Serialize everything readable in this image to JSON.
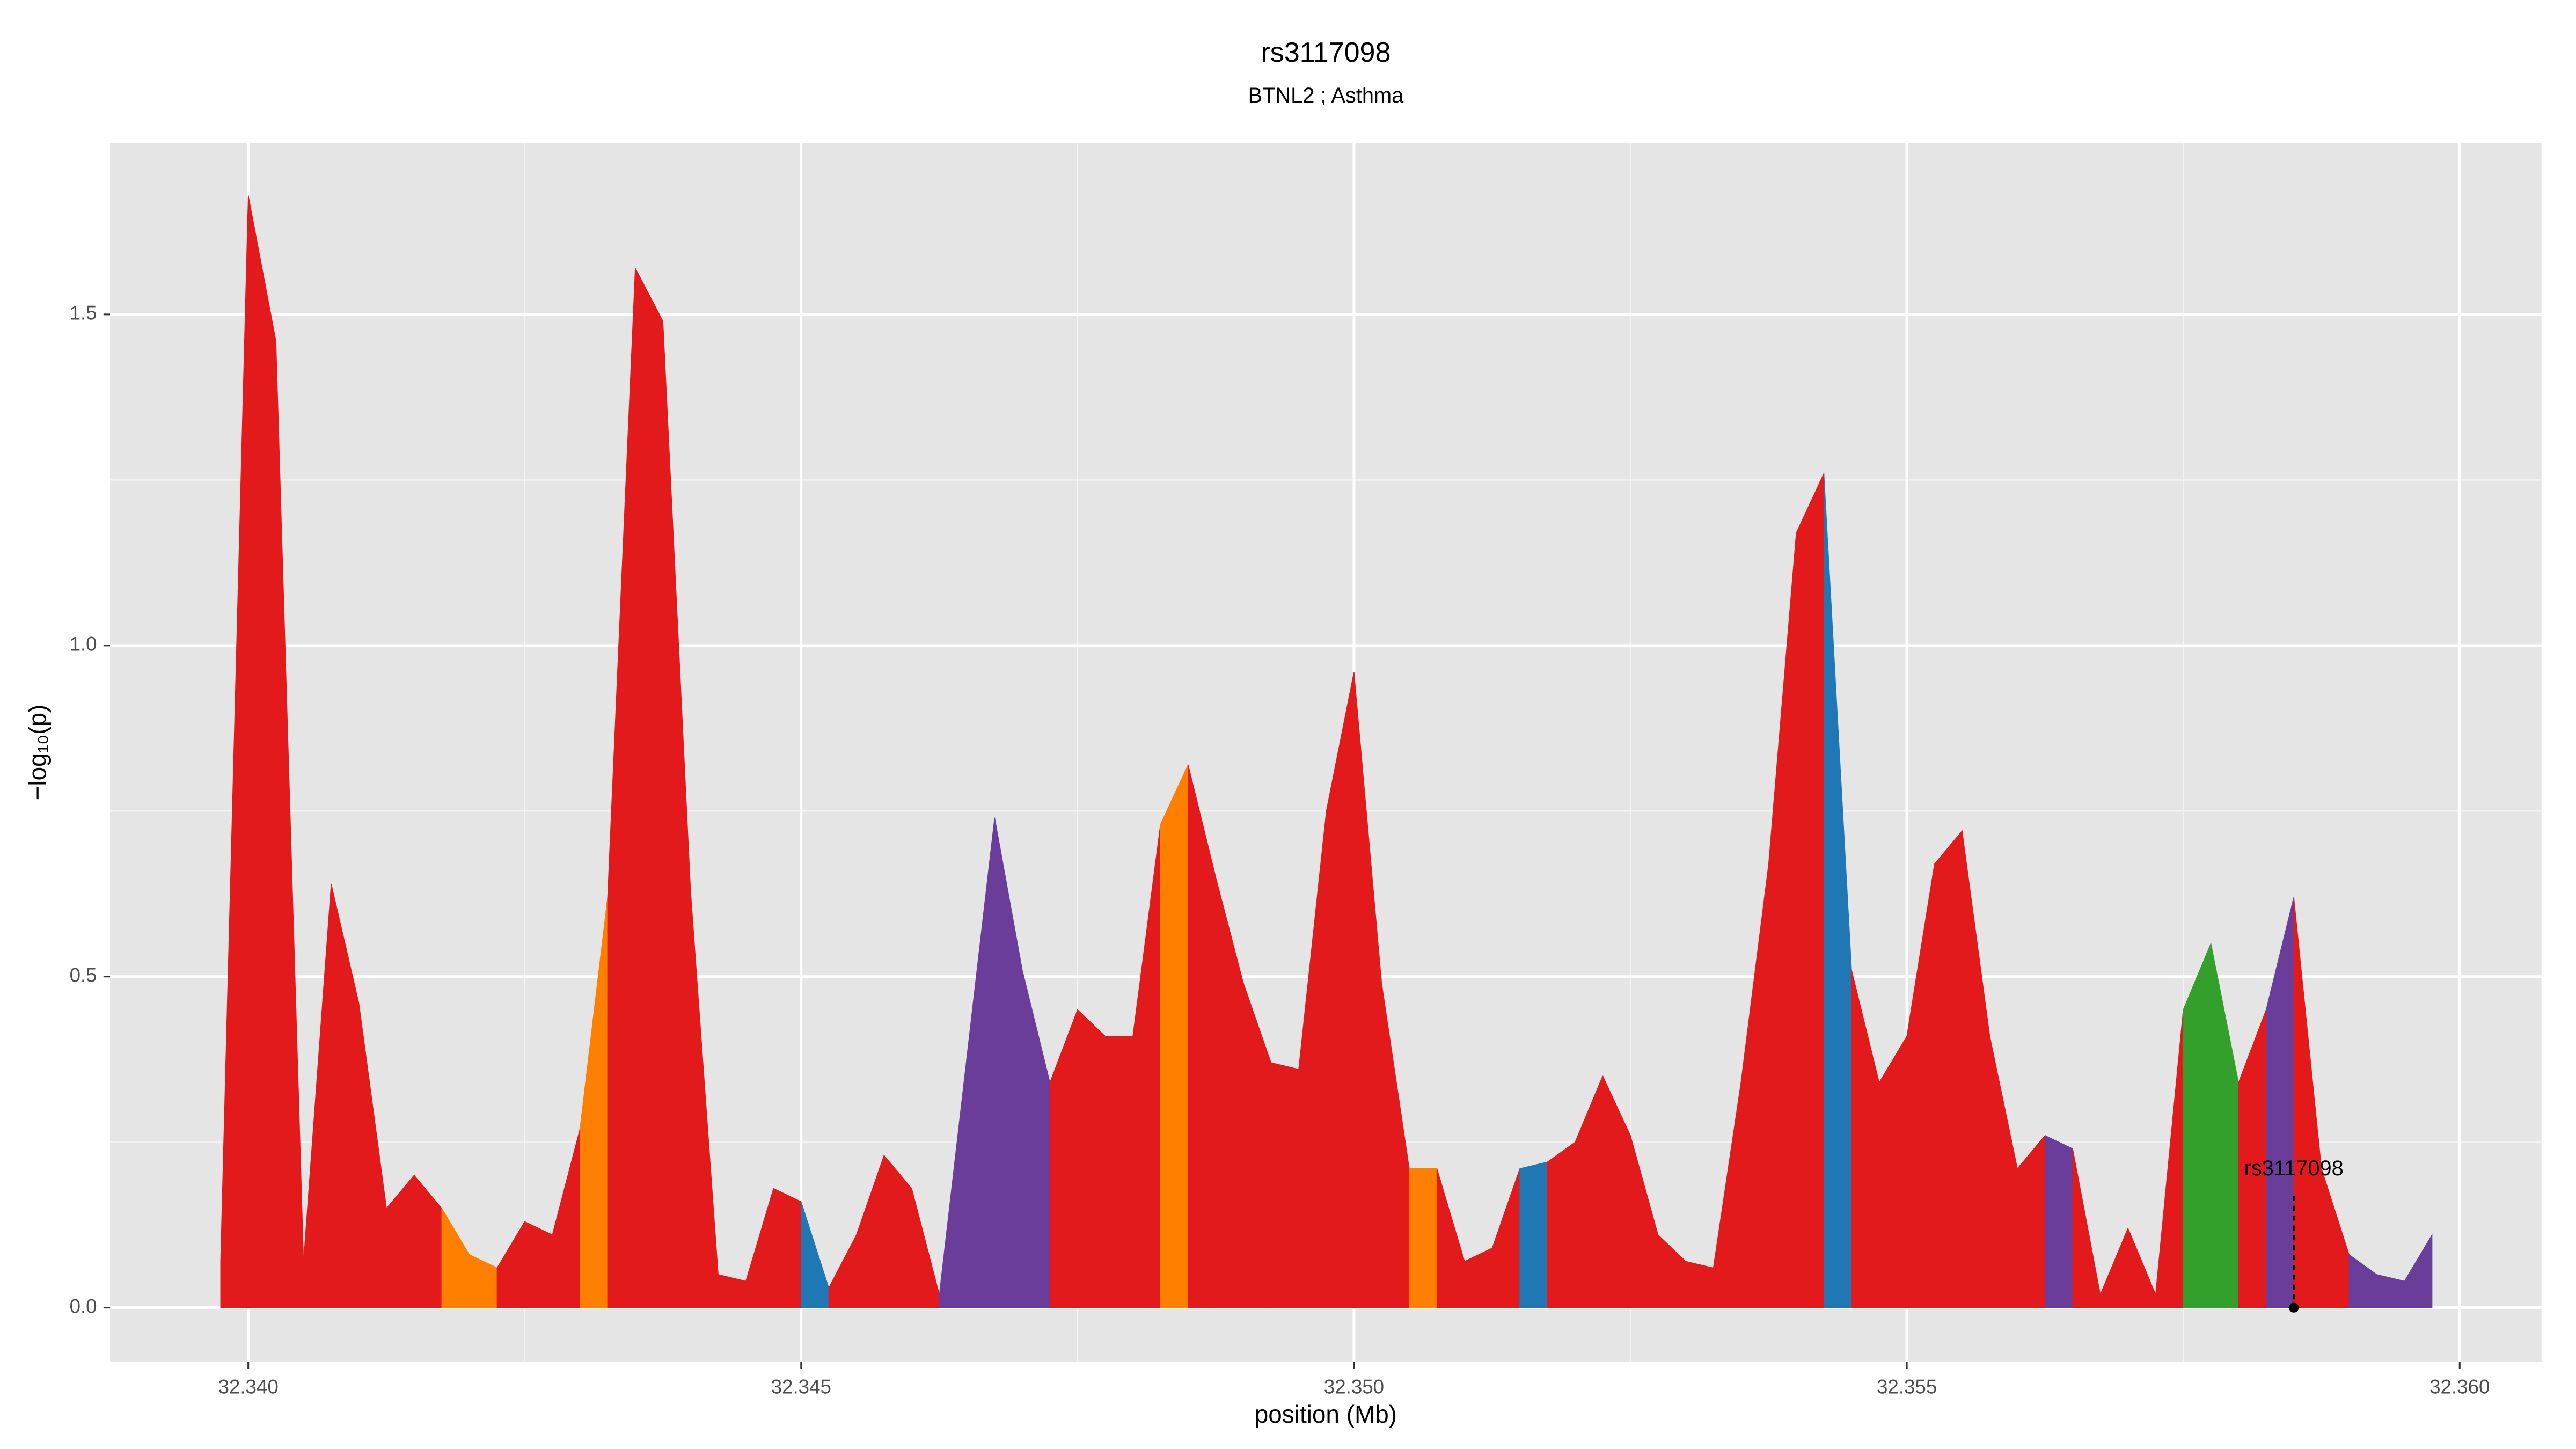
{
  "chart_data": {
    "type": "area",
    "title": "rs3117098",
    "subtitle": "BTNL2 ; Asthma",
    "xlabel": "position (Mb)",
    "ylabel": "−log₁₀(p)",
    "x": [
      32.33975,
      32.34,
      32.34025,
      32.3405,
      32.34075,
      32.341,
      32.34125,
      32.3415,
      32.34175,
      32.342,
      32.34225,
      32.3425,
      32.34275,
      32.343,
      32.34325,
      32.3435,
      32.34375,
      32.344,
      32.34425,
      32.3445,
      32.34475,
      32.345,
      32.34525,
      32.3455,
      32.34575,
      32.346,
      32.34625,
      32.3465,
      32.34675,
      32.347,
      32.34725,
      32.3475,
      32.34775,
      32.348,
      32.34825,
      32.3485,
      32.34875,
      32.349,
      32.34925,
      32.3495,
      32.34975,
      32.35,
      32.35025,
      32.3505,
      32.35075,
      32.351,
      32.35125,
      32.3515,
      32.35175,
      32.352,
      32.35225,
      32.3525,
      32.35275,
      32.353,
      32.35325,
      32.3535,
      32.35375,
      32.354,
      32.35425,
      32.3545,
      32.35475,
      32.355,
      32.35525,
      32.3555,
      32.35575,
      32.356,
      32.35625,
      32.3565,
      32.35675,
      32.357,
      32.35725,
      32.3575,
      32.35775,
      32.358,
      32.35825,
      32.3585,
      32.35875,
      32.359,
      32.35925,
      32.3595,
      32.35975
    ],
    "values": [
      0.07,
      1.68,
      1.46,
      0.07,
      0.64,
      0.46,
      0.15,
      0.2,
      0.15,
      0.08,
      0.06,
      0.13,
      0.11,
      0.27,
      0.62,
      1.57,
      1.49,
      0.63,
      0.05,
      0.04,
      0.18,
      0.16,
      0.03,
      0.11,
      0.23,
      0.18,
      0.02,
      0.38,
      0.74,
      0.51,
      0.34,
      0.45,
      0.41,
      0.41,
      0.73,
      0.82,
      0.65,
      0.49,
      0.37,
      0.36,
      0.75,
      0.96,
      0.49,
      0.21,
      0.21,
      0.07,
      0.09,
      0.21,
      0.22,
      0.25,
      0.35,
      0.26,
      0.11,
      0.07,
      0.06,
      0.34,
      0.67,
      1.17,
      1.26,
      0.51,
      0.34,
      0.41,
      0.67,
      0.72,
      0.41,
      0.21,
      0.26,
      0.24,
      0.02,
      0.12,
      0.02,
      0.45,
      0.55,
      0.34,
      0.45,
      0.62,
      0.21,
      0.08,
      0.05,
      0.04,
      0.11
    ],
    "colors": [
      "#e31a1c",
      "#e31a1c",
      "#e31a1c",
      "#e31a1c",
      "#e31a1c",
      "#e31a1c",
      "#e31a1c",
      "#e31a1c",
      "#ff7f00",
      "#ff7f00",
      "#e31a1c",
      "#e31a1c",
      "#e31a1c",
      "#ff7f00",
      "#e31a1c",
      "#e31a1c",
      "#e31a1c",
      "#e31a1c",
      "#e31a1c",
      "#e31a1c",
      "#e31a1c",
      "#1f78b4",
      "#e31a1c",
      "#e31a1c",
      "#e31a1c",
      "#e31a1c",
      "#6a3d9a",
      "#6a3d9a",
      "#6a3d9a",
      "#6a3d9a",
      "#e31a1c",
      "#e31a1c",
      "#e31a1c",
      "#e31a1c",
      "#ff7f00",
      "#e31a1c",
      "#e31a1c",
      "#e31a1c",
      "#e31a1c",
      "#e31a1c",
      "#e31a1c",
      "#e31a1c",
      "#e31a1c",
      "#ff7f00",
      "#e31a1c",
      "#e31a1c",
      "#e31a1c",
      "#1f78b4",
      "#e31a1c",
      "#e31a1c",
      "#e31a1c",
      "#e31a1c",
      "#e31a1c",
      "#e31a1c",
      "#e31a1c",
      "#e31a1c",
      "#e31a1c",
      "#e31a1c",
      "#1f78b4",
      "#e31a1c",
      "#e31a1c",
      "#e31a1c",
      "#e31a1c",
      "#e31a1c",
      "#e31a1c",
      "#e31a1c",
      "#6a3d9a",
      "#e31a1c",
      "#e31a1c",
      "#e31a1c",
      "#e31a1c",
      "#33a02c",
      "#33a02c",
      "#e31a1c",
      "#6a3d9a",
      "#e31a1c",
      "#e31a1c",
      "#6a3d9a",
      "#6a3d9a",
      "#6a3d9a",
      "#6a3d9a"
    ],
    "annotation": {
      "text": "rs3117098",
      "x": 32.3585,
      "y": 0
    },
    "xlim": [
      32.33875,
      32.36074
    ],
    "ylim": [
      -0.082,
      1.759
    ],
    "xticks": [
      {
        "value": 32.34,
        "label": "32.340"
      },
      32.345,
      {
        "value": 32.35,
        "label": "32.350"
      },
      32.355,
      {
        "value": 32.36,
        "label": "32.360"
      }
    ],
    "yticks": [
      {
        "value": 0,
        "label": "0.0"
      },
      0.5,
      {
        "value": 1,
        "label": "1.0"
      },
      1.5
    ],
    "grid": true
  }
}
